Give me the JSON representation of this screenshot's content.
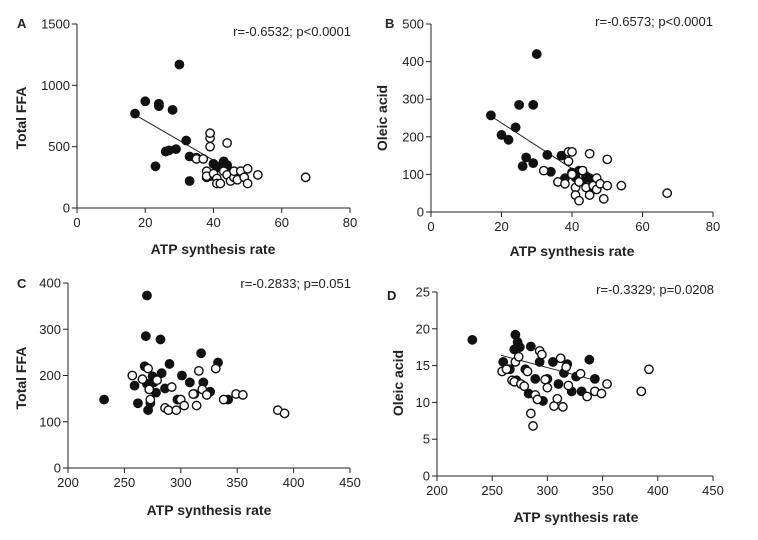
{
  "chart_data": [
    {
      "panel": "A",
      "type": "scatter",
      "xlabel": "ATP synthesis rate",
      "ylabel": "Total FFA",
      "stat_text": "r=-0.6532; p<0.0001",
      "xlim": [
        0,
        80
      ],
      "ylim": [
        0,
        1500
      ],
      "xticks": [
        0,
        20,
        40,
        60,
        80
      ],
      "yticks": [
        0,
        500,
        1000,
        1500
      ],
      "trendline": {
        "x": [
          17,
          44
        ],
        "y": [
          760,
          325
        ]
      },
      "series": [
        {
          "marker": "filled",
          "points": [
            [
              17,
              770
            ],
            [
              20,
              870
            ],
            [
              24,
              830
            ],
            [
              24,
              850
            ],
            [
              26,
              460
            ],
            [
              27,
              470
            ],
            [
              28,
              800
            ],
            [
              29,
              480
            ],
            [
              30,
              1170
            ],
            [
              23,
              340
            ],
            [
              32,
              550
            ],
            [
              33,
              420
            ],
            [
              33,
              220
            ],
            [
              35,
              410
            ],
            [
              38,
              250
            ],
            [
              39,
              260
            ],
            [
              40,
              360
            ],
            [
              41,
              330
            ],
            [
              42,
              340
            ],
            [
              43,
              380
            ],
            [
              44,
              320
            ],
            [
              44,
              350
            ]
          ]
        },
        {
          "marker": "open",
          "points": [
            [
              35,
              400
            ],
            [
              37,
              400
            ],
            [
              38,
              300
            ],
            [
              38,
              260
            ],
            [
              39,
              500
            ],
            [
              39,
              570
            ],
            [
              39,
              610
            ],
            [
              40,
              280
            ],
            [
              41,
              240
            ],
            [
              41,
              200
            ],
            [
              42,
              200
            ],
            [
              43,
              300
            ],
            [
              44,
              530
            ],
            [
              44,
              270
            ],
            [
              45,
              220
            ],
            [
              46,
              250
            ],
            [
              46,
              300
            ],
            [
              47,
              230
            ],
            [
              48,
              300
            ],
            [
              49,
              250
            ],
            [
              50,
              200
            ],
            [
              50,
              320
            ],
            [
              53,
              270
            ],
            [
              67,
              250
            ]
          ]
        }
      ]
    },
    {
      "panel": "B",
      "type": "scatter",
      "xlabel": "ATP synthesis rate",
      "ylabel": "Oleic acid",
      "stat_text": "r=-0.6573; p<0.0001",
      "xlim": [
        0,
        80
      ],
      "ylim": [
        0,
        500
      ],
      "xticks": [
        0,
        20,
        40,
        60,
        80
      ],
      "yticks": [
        0,
        100,
        200,
        300,
        400,
        500
      ],
      "trendline": {
        "x": [
          17,
          45
        ],
        "y": [
          255,
          85
        ]
      },
      "series": [
        {
          "marker": "filled",
          "points": [
            [
              17,
              257
            ],
            [
              20,
              205
            ],
            [
              22,
              192
            ],
            [
              24,
              225
            ],
            [
              25,
              285
            ],
            [
              26,
              122
            ],
            [
              27,
              145
            ],
            [
              29,
              285
            ],
            [
              30,
              420
            ],
            [
              29,
              130
            ],
            [
              33,
              152
            ],
            [
              34,
              107
            ],
            [
              37,
              150
            ],
            [
              38,
              90
            ],
            [
              40,
              105
            ],
            [
              41,
              92
            ],
            [
              42,
              110
            ],
            [
              43,
              80
            ],
            [
              44,
              95
            ],
            [
              45,
              90
            ],
            [
              46,
              75
            ],
            [
              46,
              60
            ]
          ]
        },
        {
          "marker": "open",
          "points": [
            [
              32,
              110
            ],
            [
              36,
              80
            ],
            [
              38,
              75
            ],
            [
              39,
              160
            ],
            [
              39,
              135
            ],
            [
              40,
              160
            ],
            [
              40,
              100
            ],
            [
              41,
              65
            ],
            [
              41,
              45
            ],
            [
              42,
              80
            ],
            [
              42,
              30
            ],
            [
              43,
              110
            ],
            [
              44,
              65
            ],
            [
              45,
              155
            ],
            [
              45,
              45
            ],
            [
              46,
              70
            ],
            [
              47,
              90
            ],
            [
              47,
              60
            ],
            [
              48,
              75
            ],
            [
              49,
              35
            ],
            [
              50,
              70
            ],
            [
              50,
              140
            ],
            [
              54,
              70
            ],
            [
              67,
              50
            ]
          ]
        }
      ]
    },
    {
      "panel": "C",
      "type": "scatter",
      "xlabel": "ATP synthesis rate",
      "ylabel": "Total FFA",
      "stat_text": "r=-0.2833; p=0.051",
      "xlim": [
        200,
        450
      ],
      "ylim": [
        0,
        400
      ],
      "xticks": [
        200,
        250,
        300,
        350,
        400,
        450
      ],
      "yticks": [
        0,
        100,
        200,
        300,
        400
      ],
      "series": [
        {
          "marker": "filled",
          "points": [
            [
              232,
              148
            ],
            [
              259,
              178
            ],
            [
              262,
              140
            ],
            [
              268,
              220
            ],
            [
              269,
              285
            ],
            [
              270,
              373
            ],
            [
              270,
              182
            ],
            [
              271,
              125
            ],
            [
              273,
              140
            ],
            [
              275,
              198
            ],
            [
              276,
              185
            ],
            [
              278,
              163
            ],
            [
              282,
              278
            ],
            [
              283,
              205
            ],
            [
              286,
              172
            ],
            [
              290,
              225
            ],
            [
              297,
              148
            ],
            [
              301,
              200
            ],
            [
              308,
              185
            ],
            [
              312,
              160
            ],
            [
              318,
              248
            ],
            [
              320,
              185
            ],
            [
              326,
              165
            ],
            [
              333,
              228
            ],
            [
              342,
              148
            ]
          ]
        },
        {
          "marker": "open",
          "points": [
            [
              257,
              200
            ],
            [
              266,
              192
            ],
            [
              271,
              215
            ],
            [
              272,
              170
            ],
            [
              273,
              148
            ],
            [
              279,
              190
            ],
            [
              286,
              130
            ],
            [
              289,
              125
            ],
            [
              292,
              175
            ],
            [
              296,
              125
            ],
            [
              300,
              148
            ],
            [
              303,
              135
            ],
            [
              311,
              160
            ],
            [
              314,
              135
            ],
            [
              316,
              210
            ],
            [
              319,
              170
            ],
            [
              323,
              158
            ],
            [
              331,
              215
            ],
            [
              338,
              148
            ],
            [
              349,
              160
            ],
            [
              355,
              158
            ],
            [
              386,
              125
            ],
            [
              392,
              118
            ]
          ]
        }
      ]
    },
    {
      "panel": "D",
      "type": "scatter",
      "xlabel": "ATP synthesis rate",
      "ylabel": "Oleic acid",
      "stat_text": "r=-0.3329; p=0.0208",
      "xlim": [
        200,
        450
      ],
      "ylim": [
        0,
        25
      ],
      "xticks": [
        200,
        250,
        300,
        350,
        400,
        450
      ],
      "yticks": [
        0,
        5,
        10,
        15,
        20,
        25
      ],
      "trendline": {
        "x": [
          258,
          346
        ],
        "y": [
          16.4,
          12.9
        ]
      },
      "series": [
        {
          "marker": "filled",
          "points": [
            [
              232,
              18.5
            ],
            [
              260,
              15.5
            ],
            [
              266,
              14.5
            ],
            [
              270,
              17.2
            ],
            [
              271,
              19.2
            ],
            [
              272,
              13.0
            ],
            [
              273,
              18.2
            ],
            [
              275,
              17.5
            ],
            [
              280,
              14.5
            ],
            [
              283,
              11.2
            ],
            [
              285,
              17.6
            ],
            [
              289,
              13.2
            ],
            [
              293,
              15.5
            ],
            [
              296,
              10.2
            ],
            [
              300,
              13.2
            ],
            [
              305,
              15.5
            ],
            [
              310,
              12.5
            ],
            [
              315,
              14.0
            ],
            [
              318,
              15.2
            ],
            [
              322,
              11.5
            ],
            [
              326,
              13.5
            ],
            [
              331,
              11.5
            ],
            [
              338,
              15.8
            ],
            [
              343,
              13.2
            ]
          ]
        },
        {
          "marker": "open",
          "points": [
            [
              259,
              14.2
            ],
            [
              263,
              14.5
            ],
            [
              268,
              13.0
            ],
            [
              270,
              12.8
            ],
            [
              271,
              15.5
            ],
            [
              274,
              16.2
            ],
            [
              276,
              12.5
            ],
            [
              279,
              12.2
            ],
            [
              282,
              14.2
            ],
            [
              285,
              8.5
            ],
            [
              287,
              6.8
            ],
            [
              289,
              11.0
            ],
            [
              291,
              10.4
            ],
            [
              293,
              17.0
            ],
            [
              295,
              16.5
            ],
            [
              298,
              13.1
            ],
            [
              300,
              12.0
            ],
            [
              306,
              9.5
            ],
            [
              309,
              10.5
            ],
            [
              312,
              16.0
            ],
            [
              314,
              9.4
            ],
            [
              317,
              14.8
            ],
            [
              319,
              12.3
            ],
            [
              330,
              13.9
            ],
            [
              336,
              10.8
            ],
            [
              343,
              11.5
            ],
            [
              349,
              11.2
            ],
            [
              354,
              12.5
            ],
            [
              385,
              11.5
            ],
            [
              392,
              14.5
            ]
          ]
        }
      ]
    }
  ]
}
